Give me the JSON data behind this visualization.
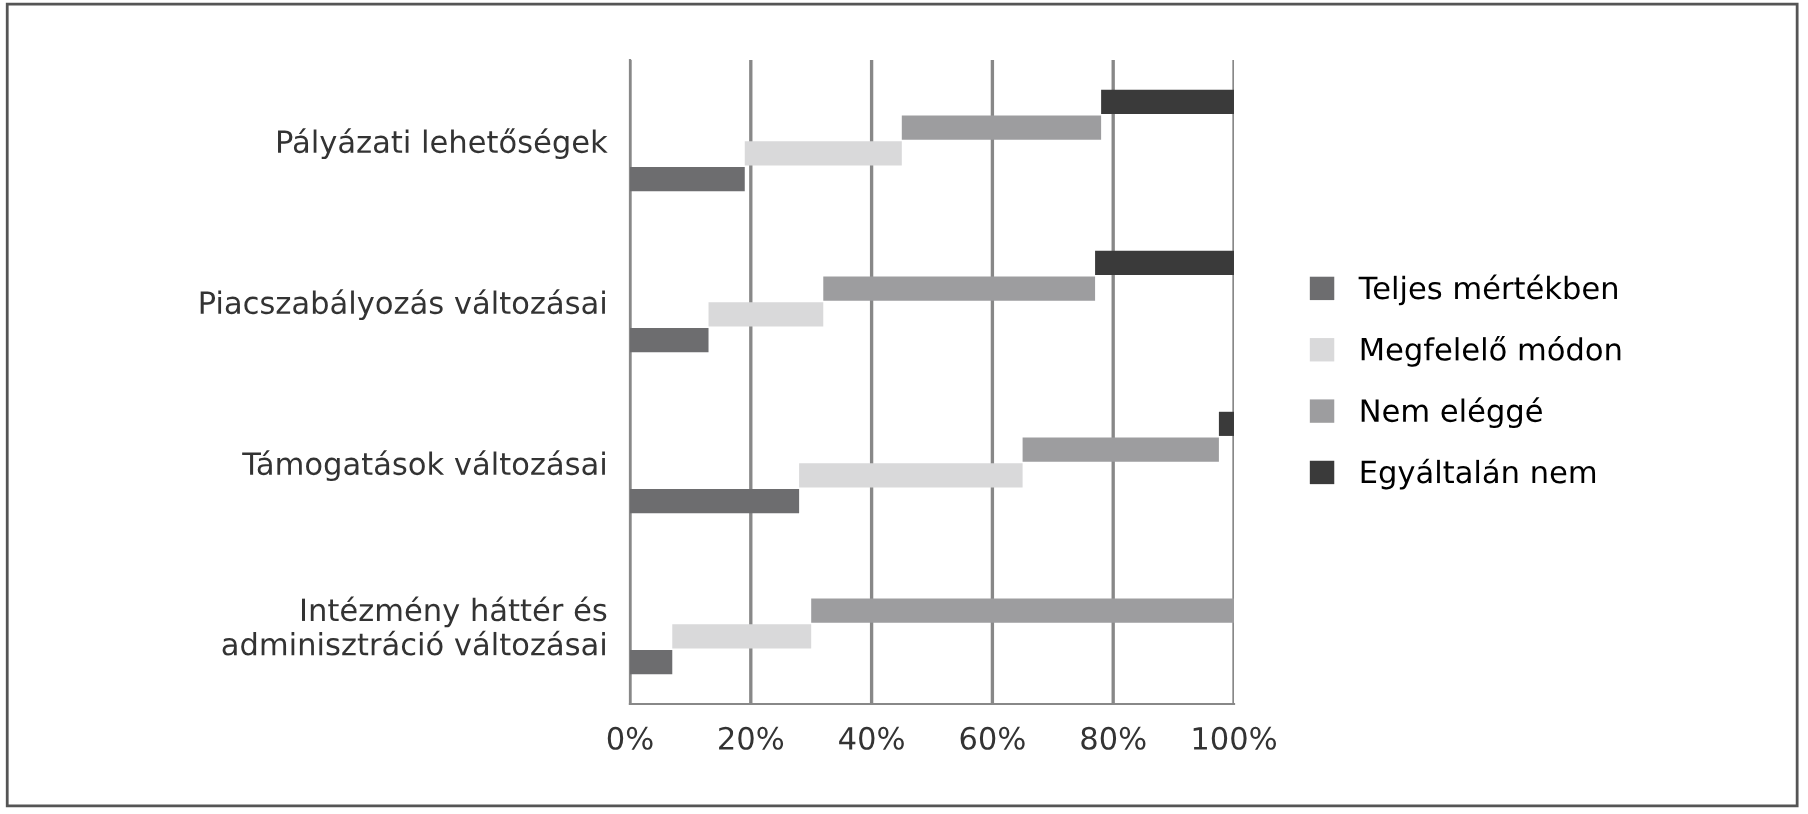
{
  "chart_data": {
    "type": "bar",
    "orientation": "horizontal",
    "stacked": true,
    "categories": [
      "Pályázati lehetőségek",
      "Piacszabályozás változásai",
      "Támogatások változásai",
      "Intézmény háttér és\nadminisztráció változásai"
    ],
    "series": [
      {
        "name": "Teljes mértékben",
        "color": "#6d6d6f",
        "values": [
          19,
          13,
          28,
          7
        ]
      },
      {
        "name": "Megfelelő módon",
        "color": "#d9d9da",
        "values": [
          26,
          19,
          37,
          23
        ]
      },
      {
        "name": "Nem eléggé",
        "color": "#9d9d9f",
        "values": [
          33,
          45,
          32.5,
          70
        ]
      },
      {
        "name": "Egyáltalán nem",
        "color": "#3a3a3a",
        "values": [
          22,
          23,
          2.5,
          0
        ]
      }
    ],
    "xlim": [
      0,
      100
    ],
    "xticks": [
      {
        "value": 0,
        "label": "0%"
      },
      {
        "value": 20,
        "label": "20%"
      },
      {
        "value": 40,
        "label": "40%"
      },
      {
        "value": 60,
        "label": "60%"
      },
      {
        "value": 80,
        "label": "80%"
      },
      {
        "value": 100,
        "label": "100%"
      }
    ],
    "grid": "x",
    "legend": "right"
  }
}
